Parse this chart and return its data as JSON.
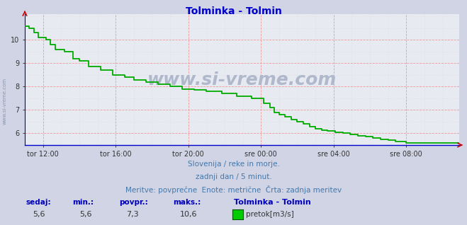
{
  "title": "Tolminka - Tolmin",
  "title_color": "#0000cc",
  "bg_color": "#d0d4e4",
  "plot_bg_color": "#e8eaf2",
  "grid_color_major": "#ee9999",
  "grid_color_minor": "#ccccbb",
  "line_color": "#00aa00",
  "line_width": 1.3,
  "xlabel_labels": [
    "tor 12:00",
    "tor 16:00",
    "tor 20:00",
    "sre 00:00",
    "sre 04:00",
    "sre 08:00"
  ],
  "ylim_min": 5.5,
  "ylim_max": 11.1,
  "yticks": [
    6,
    7,
    8,
    9,
    10
  ],
  "watermark": "www.si-vreme.com",
  "watermark_color": "#b0b8cc",
  "side_label": "www.si-vreme.com",
  "subtitle1": "Slovenija / reke in morje.",
  "subtitle2": "zadnji dan / 5 minut.",
  "subtitle3": "Meritve: povprečne  Enote: metrične  Črta: zadnja meritev",
  "subtitle_color": "#4477aa",
  "footer_color": "#0000bb",
  "sedaj_label": "sedaj:",
  "min_label": "min.:",
  "povpr_label": "povpr.:",
  "maks_label": "maks.:",
  "station_label": "Tolminka - Tolmin",
  "sedaj_val": "5,6",
  "min_val": "5,6",
  "povpr_val": "7,3",
  "maks_val": "10,6",
  "legend_label": "pretok[m3/s]",
  "legend_color": "#00cc00",
  "arrow_color": "#cc0000",
  "x_axis_color": "#0000cc",
  "n_points": 288
}
